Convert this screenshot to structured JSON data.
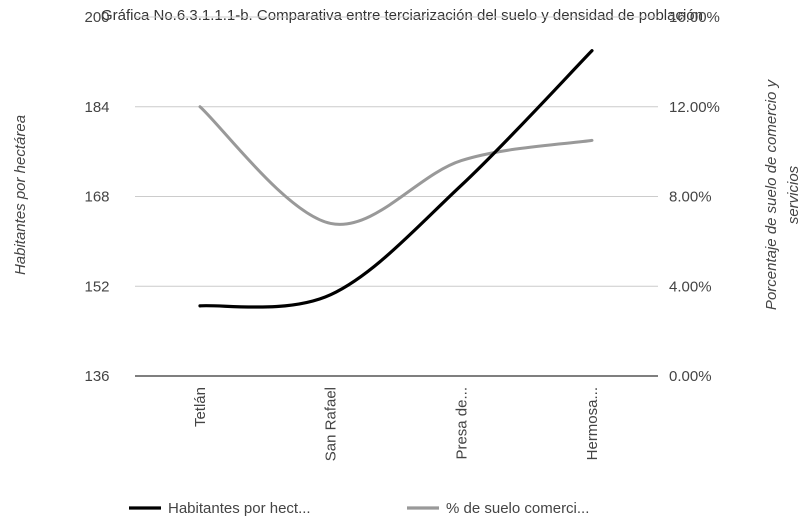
{
  "chart_data": {
    "type": "line",
    "title": "Gráfica No.6.3.1.1.1-b. Comparativa entre terciarización del suelo y densidad de población",
    "categories": [
      "Tetlán",
      "San Rafael",
      "Presa de...",
      "Hermosa..."
    ],
    "ylabel": "Habitantes por hectárea",
    "y2label_line1": "Porcentaje de suelo de comercio y",
    "y2label_line2": "servicios",
    "ylim": [
      136,
      200
    ],
    "y2lim": [
      0,
      16
    ],
    "yticks": [
      "200",
      "184",
      "168",
      "152",
      "136"
    ],
    "y2ticks": [
      "16.00%",
      "12.00%",
      "8.00%",
      "4.00%",
      "0.00%"
    ],
    "grid": true,
    "legend_position": "bottom",
    "series": [
      {
        "name": "Habitantes por hect...",
        "axis": "left",
        "color": "#000000",
        "values": [
          148.5,
          150.5,
          170,
          194
        ]
      },
      {
        "name": "% de suelo comerci...",
        "axis": "right",
        "color": "#999999",
        "values": [
          12.0,
          6.8,
          9.6,
          10.5
        ]
      }
    ]
  }
}
